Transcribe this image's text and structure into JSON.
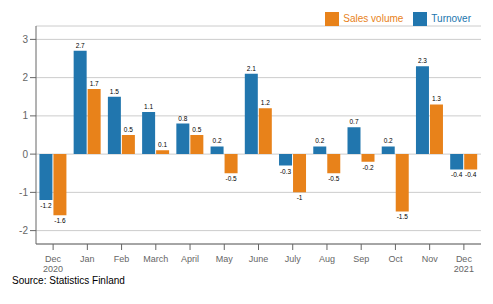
{
  "chart_data": {
    "type": "bar",
    "categories": [
      "Dec\n2020",
      "Jan",
      "Feb",
      "March",
      "April",
      "May",
      "June",
      "July",
      "Aug",
      "Sep",
      "Oct",
      "Nov",
      "Dec\n2021"
    ],
    "series": [
      {
        "name": "Turnover",
        "color": "#2176AE",
        "values": [
          -1.2,
          2.7,
          1.5,
          1.1,
          0.8,
          0.2,
          2.1,
          -0.3,
          0.2,
          0.7,
          0.2,
          2.3,
          -0.4
        ]
      },
      {
        "name": "Sales volume",
        "color": "#E8821A",
        "values": [
          -1.6,
          1.7,
          0.5,
          0.1,
          0.5,
          -0.5,
          1.2,
          -1.0,
          -0.5,
          -0.2,
          -1.5,
          1.3,
          -0.4
        ]
      }
    ],
    "ylim": [
      -2.35,
      3.35
    ],
    "yticks": [
      -2,
      -1,
      0,
      1,
      2,
      3
    ],
    "grid": true,
    "legend": "upper right",
    "data_labels": true,
    "annotations": [
      "Source: Statistics Finland"
    ]
  }
}
